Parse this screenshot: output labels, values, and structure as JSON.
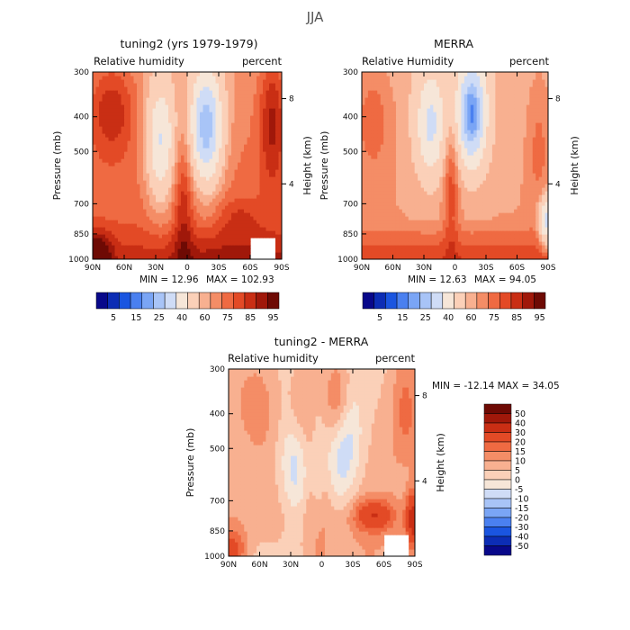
{
  "figure": {
    "title": "JJA"
  },
  "chart_data": [
    {
      "type": "heatmap",
      "id": "model",
      "title": "tuning2 (yrs 1979-1979)",
      "left_label": "Relative humidity",
      "right_label": "percent",
      "ylabel": "Pressure (mb)",
      "ylabel_right": "Height (km)",
      "x_ticks": [
        "90N",
        "60N",
        "30N",
        "0",
        "30S",
        "60S",
        "90S"
      ],
      "y_ticks": [
        "300",
        "400",
        "500",
        "700",
        "850",
        "1000"
      ],
      "y_right_ticks": [
        "8",
        "4"
      ],
      "ylim": [
        1000,
        300
      ],
      "min_label": "MIN =  12.96",
      "max_label": "MAX = 102.93",
      "colorbar": {
        "labels": [
          "5",
          "15",
          "25",
          "40",
          "60",
          "75",
          "85",
          "95"
        ],
        "colors": [
          "#08088a",
          "#0c2db5",
          "#1a55e0",
          "#4a80f0",
          "#7aa5f5",
          "#a8c4f7",
          "#cfdcf6",
          "#f6e6d8",
          "#fbd0b8",
          "#f8b090",
          "#f48d66",
          "#ef6a42",
          "#e34a26",
          "#c92e14",
          "#a0180a",
          "#6e0a04"
        ]
      },
      "field": "model"
    },
    {
      "type": "heatmap",
      "id": "merra",
      "title": "MERRA",
      "left_label": "Relative Humidity",
      "right_label": "percent",
      "ylabel": "Pressure (mb)",
      "ylabel_right": "Height (km)",
      "x_ticks": [
        "90N",
        "60N",
        "30N",
        "0",
        "30S",
        "60S",
        "90S"
      ],
      "y_ticks": [
        "300",
        "400",
        "500",
        "700",
        "850",
        "1000"
      ],
      "y_right_ticks": [
        "8",
        "4"
      ],
      "ylim": [
        1000,
        300
      ],
      "min_label": "MIN =  12.63",
      "max_label": "MAX =  94.05",
      "colorbar": {
        "labels": [
          "5",
          "15",
          "25",
          "40",
          "60",
          "75",
          "85",
          "95"
        ],
        "colors": [
          "#08088a",
          "#0c2db5",
          "#1a55e0",
          "#4a80f0",
          "#7aa5f5",
          "#a8c4f7",
          "#cfdcf6",
          "#f6e6d8",
          "#fbd0b8",
          "#f8b090",
          "#f48d66",
          "#ef6a42",
          "#e34a26",
          "#c92e14",
          "#a0180a",
          "#6e0a04"
        ]
      },
      "field": "merra"
    },
    {
      "type": "heatmap",
      "id": "diff",
      "title": "tuning2 - MERRA",
      "left_label": "Relative humidity",
      "right_label": "percent",
      "ylabel": "Pressure (mb)",
      "ylabel_right": "Height (km)",
      "x_ticks": [
        "90N",
        "60N",
        "30N",
        "0",
        "30S",
        "60S",
        "90S"
      ],
      "y_ticks": [
        "300",
        "400",
        "500",
        "700",
        "850",
        "1000"
      ],
      "y_right_ticks": [
        "8",
        "4"
      ],
      "ylim": [
        1000,
        300
      ],
      "minmax_label": "MIN = -12.14   MAX =  34.05",
      "colorbar": {
        "labels": [
          "50",
          "40",
          "30",
          "20",
          "15",
          "10",
          "5",
          "0",
          "-5",
          "-10",
          "-15",
          "-20",
          "-30",
          "-40",
          "-50"
        ],
        "colors": [
          "#6e0a04",
          "#a0180a",
          "#c92e14",
          "#e34a26",
          "#ef6a42",
          "#f48d66",
          "#f8b090",
          "#fbd0b8",
          "#f6e6d8",
          "#cfdcf6",
          "#a8c4f7",
          "#7aa5f5",
          "#4a80f0",
          "#1a55e0",
          "#0c2db5",
          "#08088a"
        ]
      },
      "field": "diff"
    }
  ]
}
